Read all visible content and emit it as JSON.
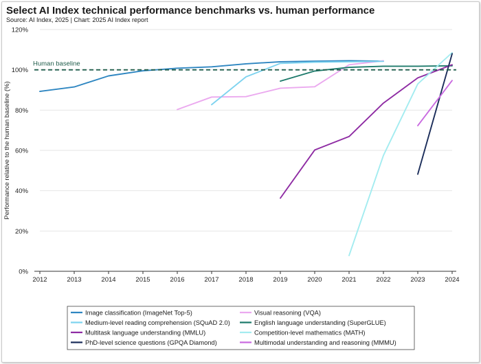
{
  "header": {
    "title": "Select AI Index technical performance benchmarks vs. human performance",
    "source": "Source: AI Index, 2025 | Chart: 2025 AI Index report"
  },
  "chart_data": {
    "type": "line",
    "title": "Select AI Index technical performance benchmarks vs. human performance",
    "xlabel": "",
    "ylabel": "Performance relative to the human baseline (%)",
    "xlim": [
      2012,
      2024
    ],
    "ylim": [
      0,
      120
    ],
    "x_ticks": [
      "2012",
      "2013",
      "2014",
      "2015",
      "2016",
      "2017",
      "2018",
      "2019",
      "2020",
      "2021",
      "2022",
      "2023",
      "2024"
    ],
    "y_ticks": [
      "0%",
      "20%",
      "40%",
      "60%",
      "80%",
      "100%",
      "120%"
    ],
    "grid": "horizontal",
    "reference_line": {
      "label": "Human baseline",
      "value": 100,
      "color": "#1f5c4a"
    },
    "legend_position": "bottom",
    "series": [
      {
        "name": "Image classification (ImageNet Top-5)",
        "color": "#2e86c1",
        "points": [
          [
            2012,
            89.3
          ],
          [
            2013,
            91.5
          ],
          [
            2014,
            97
          ],
          [
            2015,
            99.5
          ],
          [
            2016,
            100.8
          ],
          [
            2017,
            101.5
          ],
          [
            2018,
            103
          ],
          [
            2019,
            104
          ],
          [
            2020,
            104.3
          ],
          [
            2021,
            104.5
          ],
          [
            2022,
            104.3
          ]
        ]
      },
      {
        "name": "Visual reasoning (VQA)",
        "color": "#eba9ef",
        "points": [
          [
            2016,
            80.3
          ],
          [
            2017,
            86.5
          ],
          [
            2018,
            86.7
          ],
          [
            2019,
            90.9
          ],
          [
            2020,
            91.6
          ],
          [
            2021,
            102.5
          ],
          [
            2022,
            104.5
          ]
        ]
      },
      {
        "name": "Medium-level reading comprehension (SQuAD 2.0)",
        "color": "#7ed3ef",
        "points": [
          [
            2017,
            82.7
          ],
          [
            2018,
            96.5
          ],
          [
            2019,
            103.2
          ],
          [
            2020,
            103.8
          ],
          [
            2021,
            104
          ],
          [
            2022,
            104.2
          ]
        ]
      },
      {
        "name": "English language understanding (SuperGLUE)",
        "color": "#1d7a6b",
        "points": [
          [
            2019,
            94.4
          ],
          [
            2020,
            99.4
          ],
          [
            2021,
            101.2
          ],
          [
            2022,
            101.8
          ],
          [
            2023,
            101.8
          ],
          [
            2024,
            102
          ]
        ]
      },
      {
        "name": "Multitask language understanding (MMLU)",
        "color": "#8e2ba3",
        "points": [
          [
            2019,
            36.3
          ],
          [
            2020,
            60.2
          ],
          [
            2021,
            66.9
          ],
          [
            2022,
            83.5
          ],
          [
            2023,
            96
          ],
          [
            2024,
            102.5
          ]
        ]
      },
      {
        "name": "Competition-level mathematics (MATH)",
        "color": "#a3ecf0",
        "points": [
          [
            2021,
            7.8
          ],
          [
            2022,
            57.5
          ],
          [
            2023,
            93
          ],
          [
            2024,
            108.5
          ]
        ]
      },
      {
        "name": "PhD-level science questions (GPQA Diamond)",
        "color": "#1b2d5a",
        "points": [
          [
            2023,
            48.2
          ],
          [
            2024,
            108
          ]
        ]
      },
      {
        "name": "Multimodal understanding and reasoning (MMMU)",
        "color": "#c96ae0",
        "points": [
          [
            2023,
            72.3
          ],
          [
            2024,
            94.7
          ]
        ]
      }
    ]
  }
}
